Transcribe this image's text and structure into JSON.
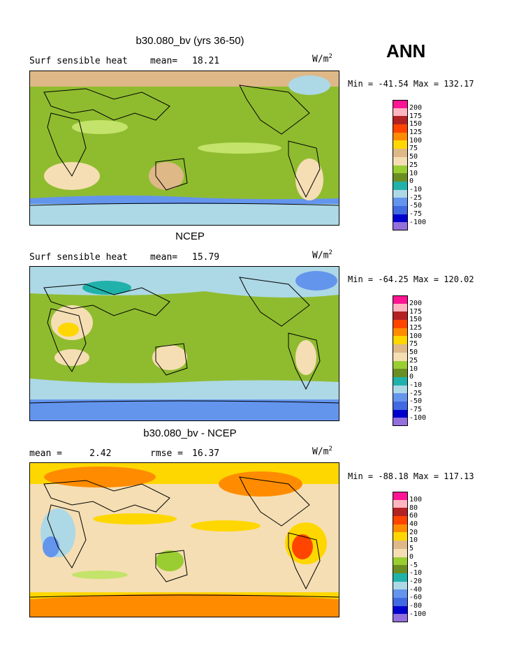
{
  "season": "ANN",
  "panels": [
    {
      "title": "b30.080_bv (yrs 36-50)",
      "left_text": "Surf sensible heat",
      "mean_label": "mean=",
      "mean_value": "18.21",
      "units": "W/m",
      "units_sup": "2",
      "minmax": "Min = -41.54 Max = 132.17",
      "legend": {
        "labels": [
          "200",
          "175",
          "150",
          "125",
          "100",
          "75",
          "50",
          "25",
          "10",
          "0",
          "-10",
          "-25",
          "-50",
          "-75",
          "-100"
        ],
        "colors": [
          "#ff1493",
          "#ffb6c1",
          "#b22222",
          "#ff4500",
          "#ff8c00",
          "#ffd700",
          "#deb887",
          "#f5deb3",
          "#9acd32",
          "#6b8e23",
          "#20b2aa",
          "#add8e6",
          "#6495ed",
          "#4169e1",
          "#0000cd",
          "#9370db"
        ]
      }
    },
    {
      "title": "NCEP",
      "left_text": "Surf sensible heat",
      "mean_label": "mean=",
      "mean_value": "15.79",
      "units": "W/m",
      "units_sup": "2",
      "minmax": "Min = -64.25 Max = 120.02",
      "legend": {
        "labels": [
          "200",
          "175",
          "150",
          "125",
          "100",
          "75",
          "50",
          "25",
          "10",
          "0",
          "-10",
          "-25",
          "-50",
          "-75",
          "-100"
        ],
        "colors": [
          "#ff1493",
          "#ffb6c1",
          "#b22222",
          "#ff4500",
          "#ff8c00",
          "#ffd700",
          "#deb887",
          "#f5deb3",
          "#9acd32",
          "#6b8e23",
          "#20b2aa",
          "#add8e6",
          "#6495ed",
          "#4169e1",
          "#0000cd",
          "#9370db"
        ]
      }
    },
    {
      "title": "b30.080_bv - NCEP",
      "left_text": "mean =     2.42",
      "mean_label": "rmse =",
      "mean_value": "16.37",
      "units": "W/m",
      "units_sup": "2",
      "minmax": "Min = -88.18 Max = 117.13",
      "legend": {
        "labels": [
          "100",
          "80",
          "60",
          "40",
          "20",
          "10",
          "5",
          "0",
          "-5",
          "-10",
          "-20",
          "-40",
          "-60",
          "-80",
          "-100"
        ],
        "colors": [
          "#ff1493",
          "#ffb6c1",
          "#b22222",
          "#ff4500",
          "#ff8c00",
          "#ffd700",
          "#deb887",
          "#f5deb3",
          "#9acd32",
          "#6b8e23",
          "#20b2aa",
          "#add8e6",
          "#6495ed",
          "#4169e1",
          "#0000cd",
          "#9370db"
        ]
      }
    }
  ]
}
